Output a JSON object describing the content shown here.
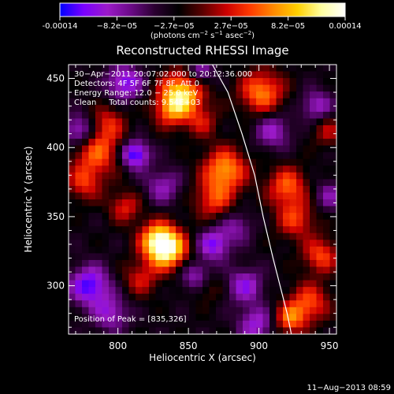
{
  "colorbar": {
    "tick_labels": [
      "-0.00014",
      "−8.2e−05",
      "−2.7e−05",
      "2.7e−05",
      "8.2e−05",
      "0.00014"
    ],
    "unit_main": "(photons cm",
    "unit_exp1": "−2",
    "unit_mid": " s",
    "unit_exp2": "−1",
    "unit_end": " asec",
    "unit_exp3": "−2",
    "unit_close": ")",
    "colors": [
      "#0000ff",
      "#7a00ff",
      "#9b1ac8",
      "#6a0a86",
      "#2a0030",
      "#000000",
      "#5a0000",
      "#cc0000",
      "#ff3a00",
      "#ff8a00",
      "#ffd000",
      "#ffffa0",
      "#ffffff"
    ]
  },
  "chart_data": {
    "type": "heatmap",
    "title": "Reconstructed RHESSI Image",
    "xlabel": "Heliocentric X (arcsec)",
    "ylabel": "Heliocentric Y (arcsec)",
    "xlim": [
      765,
      955
    ],
    "ylim": [
      265,
      460
    ],
    "x_ticks": [
      800,
      850,
      900,
      950
    ],
    "y_ticks": [
      300,
      350,
      400,
      450
    ],
    "info_lines": [
      "30−Apr−2011 20:07:02.000 to 20:12:36.000",
      "Detectors: 4F 5F 6F 7F 8F, Att 0",
      "Energy Range: 12.0 − 25.0 keV",
      "Clean     Total counts: 9.54E+03"
    ],
    "peak_label": "Position of Peak = [835,326]",
    "peak": [
      835,
      326
    ],
    "limb_curve": [
      [
        867,
        460
      ],
      [
        878,
        440
      ],
      [
        888,
        410
      ],
      [
        897,
        380
      ],
      [
        903,
        350
      ],
      [
        910,
        320
      ],
      [
        915,
        300
      ],
      [
        920,
        280
      ],
      [
        923,
        265
      ]
    ],
    "sources": [
      {
        "x": 835,
        "y": 326,
        "v": 1.0,
        "s": 10
      },
      {
        "x": 828,
        "y": 334,
        "v": 0.7,
        "s": 9
      },
      {
        "x": 846,
        "y": 440,
        "v": 0.9,
        "s": 11
      },
      {
        "x": 838,
        "y": 427,
        "v": 0.55,
        "s": 9
      },
      {
        "x": 876,
        "y": 384,
        "v": 0.75,
        "s": 11
      },
      {
        "x": 868,
        "y": 362,
        "v": 0.5,
        "s": 10
      },
      {
        "x": 785,
        "y": 397,
        "v": 0.6,
        "s": 12
      },
      {
        "x": 776,
        "y": 374,
        "v": 0.45,
        "s": 9
      },
      {
        "x": 793,
        "y": 418,
        "v": 0.4,
        "s": 9
      },
      {
        "x": 805,
        "y": 357,
        "v": 0.45,
        "s": 8
      },
      {
        "x": 816,
        "y": 305,
        "v": 0.4,
        "s": 9
      },
      {
        "x": 902,
        "y": 440,
        "v": 0.7,
        "s": 11
      },
      {
        "x": 920,
        "y": 372,
        "v": 0.6,
        "s": 10
      },
      {
        "x": 926,
        "y": 348,
        "v": 0.5,
        "s": 10
      },
      {
        "x": 944,
        "y": 322,
        "v": 0.55,
        "s": 9
      },
      {
        "x": 936,
        "y": 288,
        "v": 0.55,
        "s": 10
      },
      {
        "x": 922,
        "y": 276,
        "v": 0.6,
        "s": 8
      },
      {
        "x": 949,
        "y": 412,
        "v": 0.35,
        "s": 8
      },
      {
        "x": 862,
        "y": 300,
        "v": 0.35,
        "s": 8
      },
      {
        "x": 860,
        "y": 418,
        "v": 0.35,
        "s": 8
      },
      {
        "x": 805,
        "y": 447,
        "v": -0.6,
        "s": 9
      },
      {
        "x": 780,
        "y": 300,
        "v": -0.7,
        "s": 10
      },
      {
        "x": 773,
        "y": 412,
        "v": -0.6,
        "s": 8
      },
      {
        "x": 812,
        "y": 395,
        "v": -0.8,
        "s": 7
      },
      {
        "x": 856,
        "y": 306,
        "v": -0.55,
        "s": 8
      },
      {
        "x": 868,
        "y": 330,
        "v": -0.6,
        "s": 8
      },
      {
        "x": 890,
        "y": 300,
        "v": -0.5,
        "s": 9
      },
      {
        "x": 898,
        "y": 272,
        "v": -0.5,
        "s": 9
      },
      {
        "x": 858,
        "y": 454,
        "v": -0.5,
        "s": 7
      },
      {
        "x": 910,
        "y": 412,
        "v": -0.45,
        "s": 9
      },
      {
        "x": 941,
        "y": 430,
        "v": -0.45,
        "s": 8
      },
      {
        "x": 832,
        "y": 372,
        "v": -0.4,
        "s": 9
      },
      {
        "x": 795,
        "y": 280,
        "v": -0.45,
        "s": 9
      },
      {
        "x": 884,
        "y": 343,
        "v": -0.35,
        "s": 8
      },
      {
        "x": 950,
        "y": 365,
        "v": -0.35,
        "s": 8
      }
    ]
  },
  "footer": {
    "date": "11−Aug−2013 08:59"
  }
}
